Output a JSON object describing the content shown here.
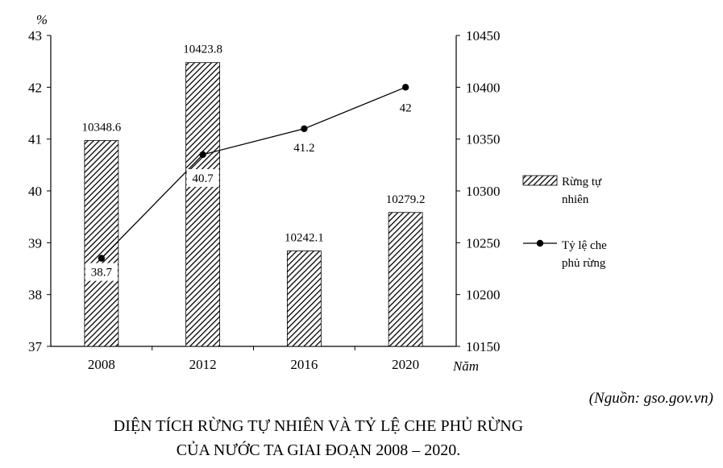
{
  "chart_data": {
    "type": "bar+line",
    "categories": [
      "2008",
      "2012",
      "2016",
      "2020"
    ],
    "series": [
      {
        "name": "Rừng tự nhiên",
        "type": "bar",
        "axis": "right",
        "values": [
          10348.6,
          10423.8,
          10242.1,
          10279.2
        ]
      },
      {
        "name": "Tỷ lệ che phủ rừng",
        "type": "line",
        "axis": "left",
        "values": [
          38.7,
          40.7,
          41.2,
          42
        ]
      }
    ],
    "bar_labels": [
      "10348.6",
      "10423.8",
      "10242.1",
      "10279.2"
    ],
    "line_labels": [
      "38.7",
      "40.7",
      "41.2",
      "42"
    ],
    "y_left": {
      "label": "%",
      "min": 37,
      "max": 43,
      "step": 1,
      "ticks": [
        "37",
        "38",
        "39",
        "40",
        "41",
        "42",
        "43"
      ]
    },
    "y_right": {
      "min": 10150,
      "max": 10450,
      "step": 50,
      "ticks": [
        "10150",
        "10200",
        "10250",
        "10300",
        "10350",
        "10400",
        "10450"
      ]
    },
    "xlabel": "Năm",
    "legend": {
      "placement": "right",
      "bar_lines": [
        "Rừng tự",
        "nhiên"
      ],
      "line_lines": [
        "Tỷ lệ che",
        "phủ rừng"
      ]
    },
    "grid": false
  },
  "source": "(Nguồn: gso.gov.vn)",
  "title_lines": [
    "DIỆN TÍCH RỪNG TỰ NHIÊN VÀ TỶ LỆ CHE PHỦ RỪNG",
    "CỦA NƯỚC TA GIAI ĐOẠN 2008 – 2020."
  ]
}
